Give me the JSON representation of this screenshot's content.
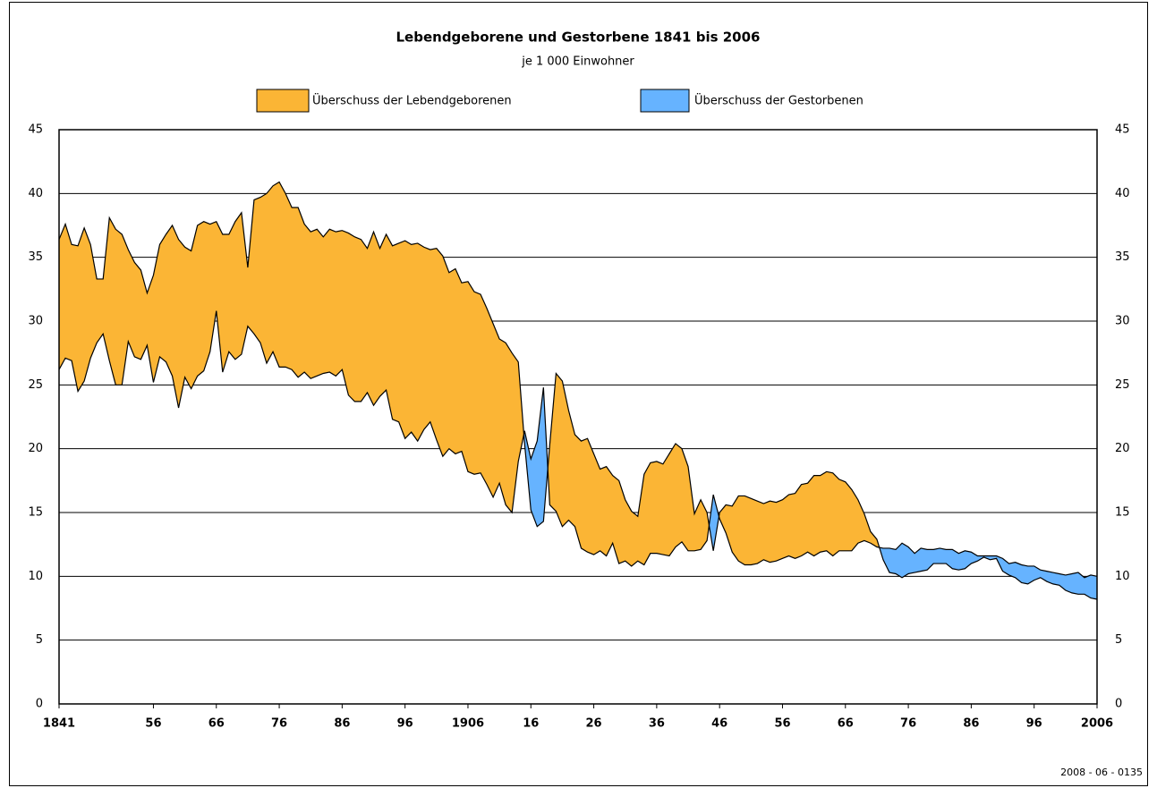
{
  "chart_data": {
    "type": "difference-area",
    "title": "Lebendgeborene und Gestorbene 1841 bis 2006",
    "subtitle": "je 1 000 Einwohner",
    "footnote": "2008 - 06 - 0135",
    "legend": [
      {
        "label": "Überschuss der Lebendgeborenen",
        "color": "#fbb535"
      },
      {
        "label": "Überschuss der Gestorbenen",
        "color": "#66b3ff"
      }
    ],
    "x": [
      1841,
      1842,
      1843,
      1844,
      1845,
      1846,
      1847,
      1848,
      1849,
      1850,
      1851,
      1852,
      1853,
      1854,
      1855,
      1856,
      1857,
      1858,
      1859,
      1860,
      1861,
      1862,
      1863,
      1864,
      1865,
      1866,
      1867,
      1868,
      1869,
      1870,
      1871,
      1872,
      1873,
      1874,
      1875,
      1876,
      1877,
      1878,
      1879,
      1880,
      1881,
      1882,
      1883,
      1884,
      1885,
      1886,
      1887,
      1888,
      1889,
      1890,
      1891,
      1892,
      1893,
      1894,
      1895,
      1896,
      1897,
      1898,
      1899,
      1900,
      1901,
      1902,
      1903,
      1904,
      1905,
      1906,
      1907,
      1908,
      1909,
      1910,
      1911,
      1912,
      1913,
      1914,
      1915,
      1916,
      1917,
      1918,
      1919,
      1920,
      1921,
      1922,
      1923,
      1924,
      1925,
      1926,
      1927,
      1928,
      1929,
      1930,
      1931,
      1932,
      1933,
      1934,
      1935,
      1936,
      1937,
      1938,
      1939,
      1940,
      1941,
      1942,
      1943,
      1944,
      1945,
      1946,
      1947,
      1948,
      1949,
      1950,
      1951,
      1952,
      1953,
      1954,
      1955,
      1956,
      1957,
      1958,
      1959,
      1960,
      1961,
      1962,
      1963,
      1964,
      1965,
      1966,
      1967,
      1968,
      1969,
      1970,
      1971,
      1972,
      1973,
      1974,
      1975,
      1976,
      1977,
      1978,
      1979,
      1980,
      1981,
      1982,
      1983,
      1984,
      1985,
      1986,
      1987,
      1988,
      1989,
      1990,
      1991,
      1992,
      1993,
      1994,
      1995,
      1996,
      1997,
      1998,
      1999,
      2000,
      2001,
      2002,
      2003,
      2004,
      2005,
      2006
    ],
    "series": [
      {
        "color": "#000000",
        "values": [
          36.4,
          37.6,
          36.0,
          35.9,
          37.3,
          36.0,
          33.3,
          33.3,
          38.1,
          37.2,
          36.8,
          35.6,
          34.6,
          34.0,
          32.2,
          33.6,
          36.0,
          36.8,
          37.5,
          36.4,
          35.8,
          35.5,
          37.5,
          37.8,
          37.6,
          37.8,
          36.8,
          36.8,
          37.8,
          38.5,
          34.2,
          39.5,
          39.7,
          40.0,
          40.6,
          40.9,
          40.0,
          38.9,
          38.9,
          37.6,
          37.0,
          37.2,
          36.6,
          37.2,
          37.0,
          37.1,
          36.9,
          36.6,
          36.4,
          35.7,
          37.0,
          35.7,
          36.8,
          35.9,
          36.1,
          36.3,
          36.0,
          36.1,
          35.8,
          35.6,
          35.7,
          35.1,
          33.8,
          34.1,
          33.0,
          33.1,
          32.3,
          32.1,
          31.0,
          29.8,
          28.6,
          28.3,
          27.5,
          26.8,
          20.4,
          15.2,
          13.9,
          14.3,
          20.3,
          25.9,
          25.3,
          23.0,
          21.1,
          20.6,
          20.8,
          19.6,
          18.4,
          18.6,
          17.9,
          17.5,
          16.0,
          15.1,
          14.7,
          18.0,
          18.9,
          19.0,
          18.8,
          19.6,
          20.4,
          20.0,
          18.6,
          14.9,
          16.0,
          15.0,
          12.0,
          15.0,
          15.6,
          15.5,
          16.3,
          16.3,
          16.1,
          15.9,
          15.7,
          15.9,
          15.8,
          16.0,
          16.4,
          16.5,
          17.2,
          17.3,
          17.9,
          17.9,
          18.2,
          18.1,
          17.6,
          17.4,
          16.8,
          16.0,
          14.9,
          13.5,
          12.9,
          11.3,
          10.3,
          10.2,
          9.9,
          10.2,
          10.3,
          10.4,
          10.5,
          11.0,
          11.0,
          11.0,
          10.6,
          10.5,
          10.6,
          11.0,
          11.2,
          11.5,
          11.3,
          11.4,
          10.4,
          10.1,
          9.9,
          9.5,
          9.4,
          9.7,
          9.9,
          9.6,
          9.4,
          9.3,
          8.9,
          8.7,
          8.6,
          8.6,
          8.3,
          8.2
        ]
      },
      {
        "color": "#000000",
        "values": [
          26.2,
          27.1,
          26.9,
          24.5,
          25.3,
          27.1,
          28.3,
          29.0,
          26.9,
          25.0,
          25.0,
          28.4,
          27.2,
          27.0,
          28.1,
          25.2,
          27.2,
          26.8,
          25.7,
          23.2,
          25.6,
          24.7,
          25.7,
          26.1,
          27.6,
          30.8,
          26.0,
          27.6,
          27.0,
          27.4,
          29.6,
          29.0,
          28.3,
          26.7,
          27.6,
          26.4,
          26.4,
          26.2,
          25.6,
          26.0,
          25.5,
          25.7,
          25.9,
          26.0,
          25.7,
          26.2,
          24.2,
          23.7,
          23.7,
          24.4,
          23.4,
          24.1,
          24.6,
          22.3,
          22.1,
          20.8,
          21.3,
          20.6,
          21.5,
          22.1,
          20.7,
          19.4,
          20.0,
          19.6,
          19.8,
          18.2,
          18.0,
          18.1,
          17.2,
          16.2,
          17.3,
          15.6,
          15.0,
          19.0,
          21.4,
          19.2,
          20.6,
          24.8,
          15.6,
          15.1,
          13.9,
          14.4,
          13.9,
          12.2,
          11.9,
          11.7,
          12.0,
          11.6,
          12.6,
          11.0,
          11.2,
          10.8,
          11.2,
          10.9,
          11.8,
          11.8,
          11.7,
          11.6,
          12.3,
          12.7,
          12.0,
          12.0,
          12.1,
          12.8,
          16.4,
          14.5,
          13.4,
          11.9,
          11.2,
          10.9,
          10.9,
          11.0,
          11.3,
          11.1,
          11.2,
          11.4,
          11.6,
          11.4,
          11.6,
          11.9,
          11.6,
          11.9,
          12.0,
          11.6,
          12.0,
          12.0,
          12.0,
          12.6,
          12.8,
          12.6,
          12.3,
          12.2,
          12.2,
          12.1,
          12.6,
          12.3,
          11.8,
          12.2,
          12.1,
          12.1,
          12.2,
          12.1,
          12.1,
          11.8,
          12.0,
          11.9,
          11.6,
          11.6,
          11.6,
          11.6,
          11.4,
          11.0,
          11.1,
          10.9,
          10.8,
          10.8,
          10.5,
          10.4,
          10.3,
          10.2,
          10.1,
          10.2,
          10.3,
          9.9,
          10.1,
          10.0
        ]
      }
    ],
    "xlim": [
      1841,
      2006
    ],
    "xticks": [
      1841,
      {
        "value": 1856,
        "label": "56"
      },
      {
        "value": 1866,
        "label": "66"
      },
      {
        "value": 1876,
        "label": "76"
      },
      {
        "value": 1886,
        "label": "86"
      },
      {
        "value": 1896,
        "label": "96"
      },
      1906,
      {
        "value": 1916,
        "label": "16"
      },
      {
        "value": 1926,
        "label": "26"
      },
      {
        "value": 1936,
        "label": "36"
      },
      {
        "value": 1946,
        "label": "46"
      },
      {
        "value": 1956,
        "label": "56"
      },
      {
        "value": 1966,
        "label": "66"
      },
      {
        "value": 1976,
        "label": "76"
      },
      {
        "value": 1986,
        "label": "86"
      },
      {
        "value": 1996,
        "label": "96"
      },
      2006
    ],
    "ylim": [
      0,
      45
    ],
    "yticks": [
      0,
      5,
      10,
      15,
      20,
      25,
      30,
      35,
      40,
      45
    ],
    "grid": true
  }
}
